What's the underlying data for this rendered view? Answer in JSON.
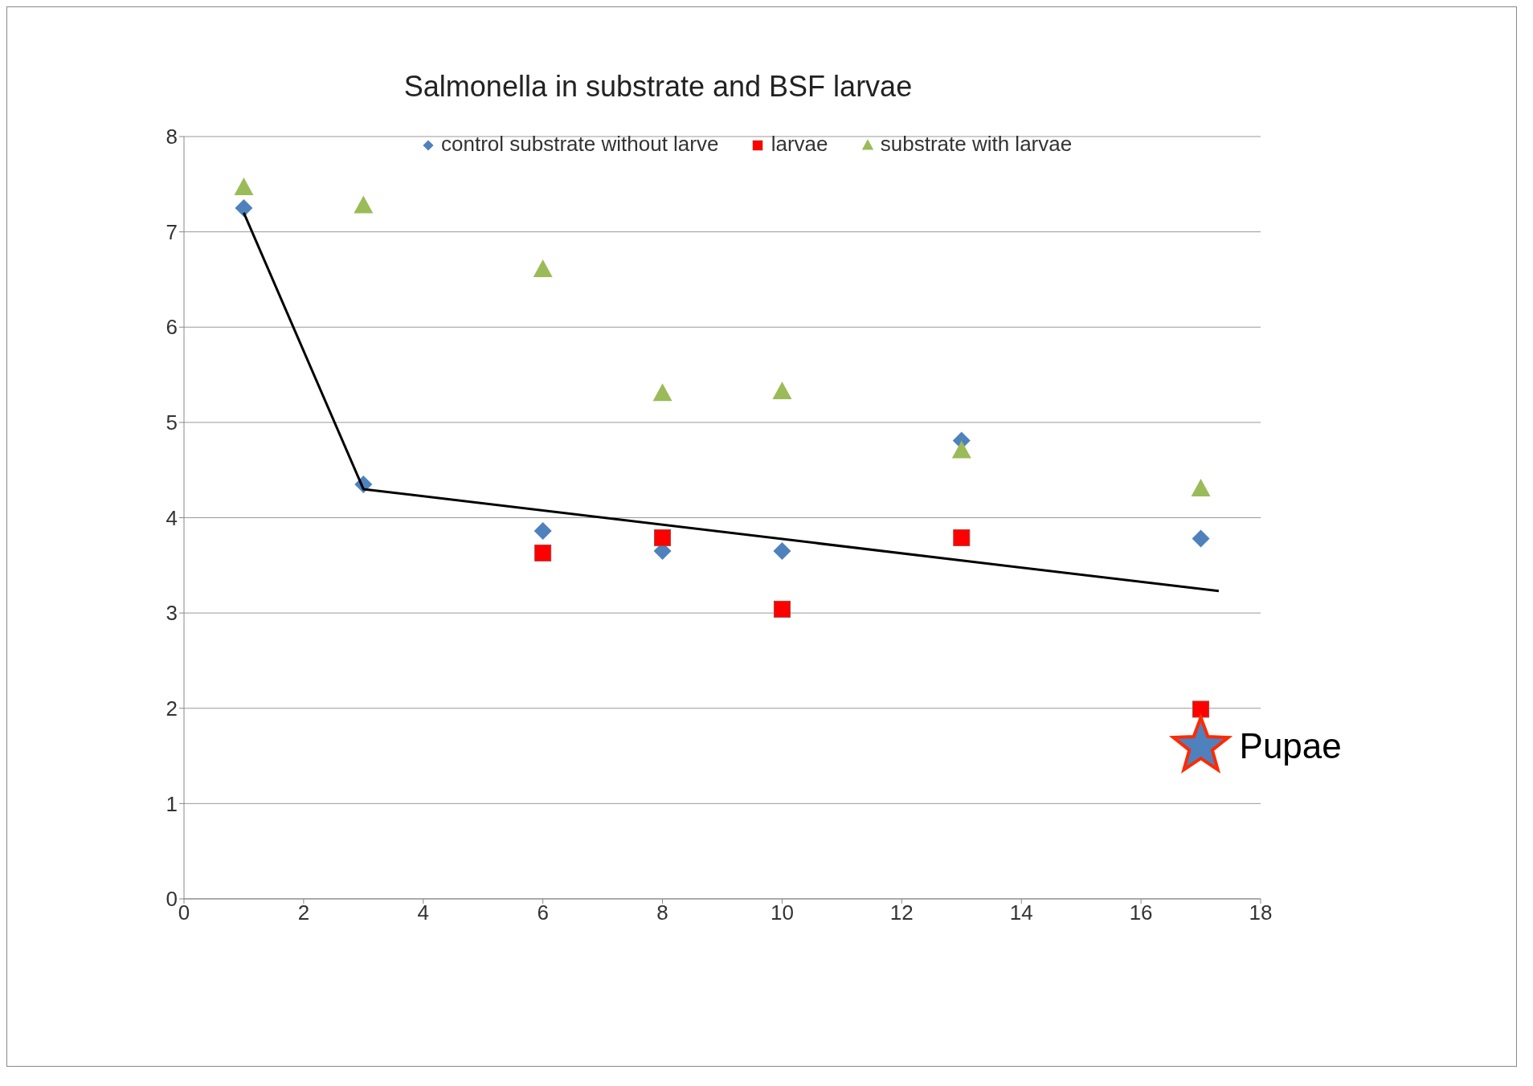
{
  "chart_data": {
    "type": "scatter",
    "title": "Salmonella  in substrate and BSF  larvae",
    "xlim": [
      0,
      18
    ],
    "xticks": [
      0,
      2,
      4,
      6,
      8,
      10,
      12,
      14,
      16,
      18
    ],
    "ylim": [
      0,
      8
    ],
    "yticks": [
      0,
      1,
      2,
      3,
      4,
      5,
      6,
      7,
      8
    ],
    "grid": "y",
    "legend": "top",
    "series": [
      {
        "name": "control substrate without larve",
        "color": "#4f81bd",
        "marker": "diamond",
        "x": [
          1,
          3,
          6,
          8,
          10,
          13,
          17
        ],
        "values": [
          7.25,
          4.35,
          3.86,
          3.65,
          3.65,
          4.81,
          3.78
        ]
      },
      {
        "name": "larvae",
        "color": "#ff0000",
        "marker": "square",
        "x": [
          6,
          8,
          10,
          13,
          17
        ],
        "values": [
          3.63,
          3.79,
          3.04,
          3.79,
          1.99
        ]
      },
      {
        "name": "substrate with larvae",
        "color": "#9bbb59",
        "marker": "triangle",
        "x": [
          1,
          3,
          6,
          8,
          10,
          13,
          17
        ],
        "values": [
          7.46,
          7.27,
          6.6,
          5.3,
          5.32,
          4.7,
          4.3
        ]
      },
      {
        "type": "line",
        "color": "#000000",
        "marker": "none",
        "x": [
          1,
          3,
          17.3
        ],
        "values": [
          7.2,
          4.3,
          3.23
        ]
      },
      {
        "color": "#4f81bd",
        "marker": "star",
        "x": [
          17
        ],
        "values": [
          1.6
        ]
      }
    ],
    "annotations": [
      {
        "text": "Pupae",
        "x": 17,
        "y": 1.6
      }
    ]
  }
}
